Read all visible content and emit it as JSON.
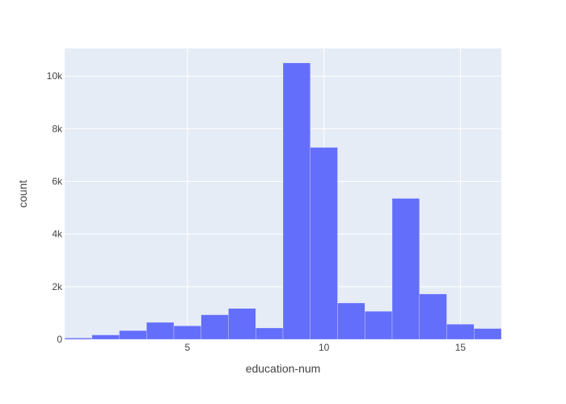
{
  "colors": {
    "plot_bg": "#e5ecf6",
    "grid": "#ffffff",
    "bar": "#636efa",
    "text": "#444444"
  },
  "chart_data": {
    "type": "bar",
    "subtype": "histogram",
    "xlabel": "education-num",
    "ylabel": "count",
    "xlim": [
      0.5,
      16.5
    ],
    "ylim": [
      0,
      11050
    ],
    "grid": true,
    "x_ticks": [
      5,
      10,
      15
    ],
    "x_tick_labels": [
      "5",
      "10",
      "15"
    ],
    "y_ticks": [
      0,
      2000,
      4000,
      6000,
      8000,
      10000
    ],
    "y_tick_labels": [
      "0",
      "2k",
      "4k",
      "6k",
      "8k",
      "10k"
    ],
    "bins": [
      {
        "x0": 0.5,
        "x1": 1.5,
        "count": 51
      },
      {
        "x0": 1.5,
        "x1": 2.5,
        "count": 168
      },
      {
        "x0": 2.5,
        "x1": 3.5,
        "count": 333
      },
      {
        "x0": 3.5,
        "x1": 4.5,
        "count": 646
      },
      {
        "x0": 4.5,
        "x1": 5.5,
        "count": 514
      },
      {
        "x0": 5.5,
        "x1": 6.5,
        "count": 933
      },
      {
        "x0": 6.5,
        "x1": 7.5,
        "count": 1175
      },
      {
        "x0": 7.5,
        "x1": 8.5,
        "count": 433
      },
      {
        "x0": 8.5,
        "x1": 9.5,
        "count": 10501
      },
      {
        "x0": 9.5,
        "x1": 10.5,
        "count": 7291
      },
      {
        "x0": 10.5,
        "x1": 11.5,
        "count": 1382
      },
      {
        "x0": 11.5,
        "x1": 12.5,
        "count": 1067
      },
      {
        "x0": 12.5,
        "x1": 13.5,
        "count": 5355
      },
      {
        "x0": 13.5,
        "x1": 14.5,
        "count": 1723
      },
      {
        "x0": 14.5,
        "x1": 15.5,
        "count": 576
      },
      {
        "x0": 15.5,
        "x1": 16.5,
        "count": 413
      }
    ]
  }
}
